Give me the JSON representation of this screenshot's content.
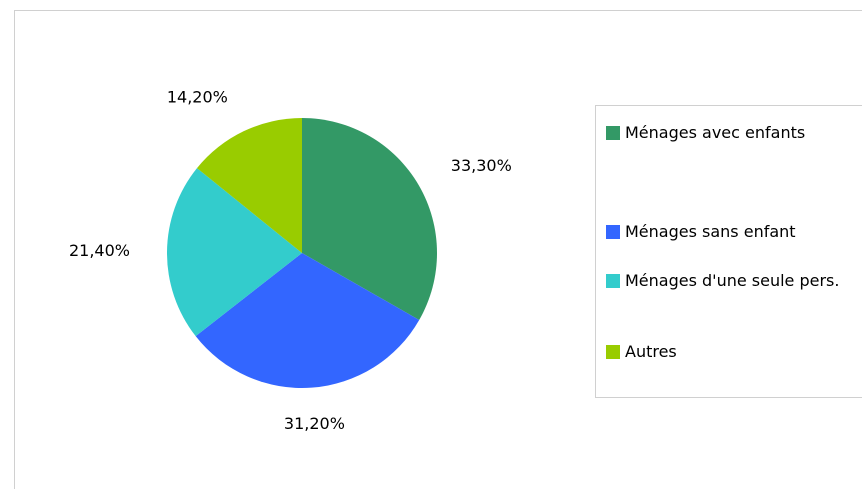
{
  "chart_data": {
    "type": "pie",
    "categories": [
      "Ménages avec enfants",
      "Ménages sans enfant",
      "Ménages d'une seule pers.",
      "Autres"
    ],
    "values": [
      33.3,
      31.2,
      21.4,
      14.2
    ],
    "value_labels": [
      "33,30%",
      "31,20%",
      "21,40%",
      "14,20%"
    ],
    "colors": [
      "#339966",
      "#3366ff",
      "#33cccc",
      "#99cc00"
    ],
    "legend": "right"
  }
}
